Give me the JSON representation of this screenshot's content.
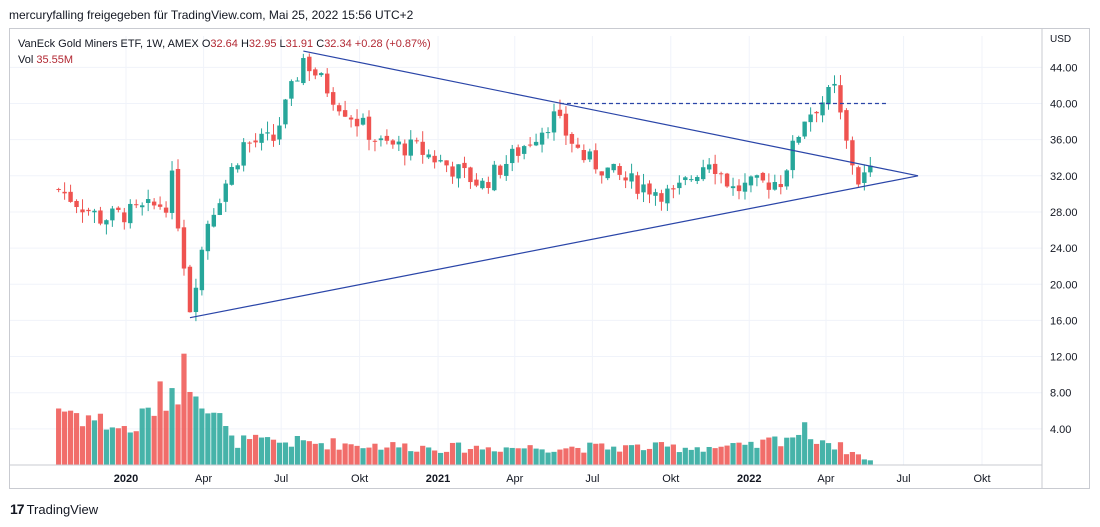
{
  "header": {
    "published": "mercuryfalling freigegeben für TradingView.com, Mai 25, 2022 15:56 UTC+2"
  },
  "legend": {
    "title": "VanEck Gold Miners ETF, 1W, AMEX",
    "o_label": "O",
    "o_value": "32.64",
    "h_label": "H",
    "h_value": "32.95",
    "l_label": "L",
    "l_value": "31.91",
    "c_label": "C",
    "c_value": "32.34",
    "change": "+0.28 (+0.87%)",
    "vol_label": "Vol",
    "vol_value": "35.55M"
  },
  "axis": {
    "currency": "USD"
  },
  "footer": {
    "brand": "TradingView",
    "logo_mark": "17"
  },
  "colors": {
    "up": "#26a69a",
    "down": "#ef5350",
    "up_vol": "#26a69a",
    "down_vol": "#ef5350",
    "trendline": "#2a45a8",
    "grid": "#f0f3fa"
  },
  "chart_data": {
    "type": "candlestick",
    "symbol": "VanEck Gold Miners ETF, 1W, AMEX",
    "ylim": [
      0,
      48
    ],
    "y_ticks": [
      "4.00",
      "8.00",
      "12.00",
      "16.00",
      "20.00",
      "24.00",
      "28.00",
      "32.00",
      "36.00",
      "40.00",
      "44.00"
    ],
    "x_ticks": [
      {
        "label": "2020",
        "date": "2020-01-01"
      },
      {
        "label": "Apr",
        "date": "2020-04-01"
      },
      {
        "label": "Jul",
        "date": "2020-07-01"
      },
      {
        "label": "Okt",
        "date": "2020-10-01"
      },
      {
        "label": "2021",
        "date": "2021-01-01"
      },
      {
        "label": "Apr",
        "date": "2021-04-01"
      },
      {
        "label": "Jul",
        "date": "2021-07-01"
      },
      {
        "label": "Okt",
        "date": "2021-10-01"
      },
      {
        "label": "2022",
        "date": "2022-01-01"
      },
      {
        "label": "Apr",
        "date": "2022-04-01"
      },
      {
        "label": "Jul",
        "date": "2022-07-01"
      },
      {
        "label": "Okt",
        "date": "2022-10-01"
      }
    ],
    "first_bar_date": "2019-10-14",
    "close_trend": [
      {
        "date": "2019-10-14",
        "close": 30.5
      },
      {
        "date": "2019-12-02",
        "close": 27.3
      },
      {
        "date": "2020-01-13",
        "close": 28.0
      },
      {
        "date": "2020-02-17",
        "close": 29.0
      },
      {
        "date": "2020-02-24",
        "close": 31.5
      },
      {
        "date": "2020-03-09",
        "close": 22.5
      },
      {
        "date": "2020-03-16",
        "close": 17.5
      },
      {
        "date": "2020-04-06",
        "close": 27.0
      },
      {
        "date": "2020-05-18",
        "close": 35.5
      },
      {
        "date": "2020-06-22",
        "close": 36.0
      },
      {
        "date": "2020-07-27",
        "close": 45.0
      },
      {
        "date": "2020-09-07",
        "close": 40.0
      },
      {
        "date": "2020-10-26",
        "close": 35.5
      },
      {
        "date": "2020-12-07",
        "close": 35.0
      },
      {
        "date": "2021-02-22",
        "close": 31.0
      },
      {
        "date": "2021-05-17",
        "close": 38.5
      },
      {
        "date": "2021-06-21",
        "close": 34.0
      },
      {
        "date": "2021-08-09",
        "close": 31.5
      },
      {
        "date": "2021-10-04",
        "close": 29.8
      },
      {
        "date": "2021-11-15",
        "close": 34.0
      },
      {
        "date": "2021-12-13",
        "close": 30.5
      },
      {
        "date": "2022-02-07",
        "close": 31.5
      },
      {
        "date": "2022-03-07",
        "close": 38.5
      },
      {
        "date": "2022-04-11",
        "close": 41.5
      },
      {
        "date": "2022-04-25",
        "close": 35.5
      },
      {
        "date": "2022-05-09",
        "close": 31.5
      },
      {
        "date": "2022-05-23",
        "close": 32.34
      }
    ],
    "volume_scale_max": 16,
    "volume_trend": [
      {
        "date": "2019-10-14",
        "value": 7.8
      },
      {
        "date": "2020-01-06",
        "value": 4.5
      },
      {
        "date": "2020-03-16",
        "value": 13.0
      },
      {
        "date": "2020-05-04",
        "value": 3.2
      },
      {
        "date": "2020-08-03",
        "value": 3.0
      },
      {
        "date": "2021-01-04",
        "value": 2.3
      },
      {
        "date": "2022-01-03",
        "value": 2.4
      },
      {
        "date": "2022-03-07",
        "value": 4.5
      },
      {
        "date": "2022-05-23",
        "value": 0.6
      }
    ],
    "triangle_lines": [
      {
        "from": {
          "date": "2020-07-27",
          "price": 45.8
        },
        "to": {
          "date": "2022-07-18",
          "price": 32.0
        }
      },
      {
        "from": {
          "date": "2020-03-16",
          "price": 16.3
        },
        "to": {
          "date": "2022-07-18",
          "price": 32.0
        }
      },
      {
        "from": {
          "date": "2021-05-24",
          "price": 40.0
        },
        "to": {
          "date": "2022-06-13",
          "price": 40.0
        },
        "dashed": true
      }
    ]
  }
}
